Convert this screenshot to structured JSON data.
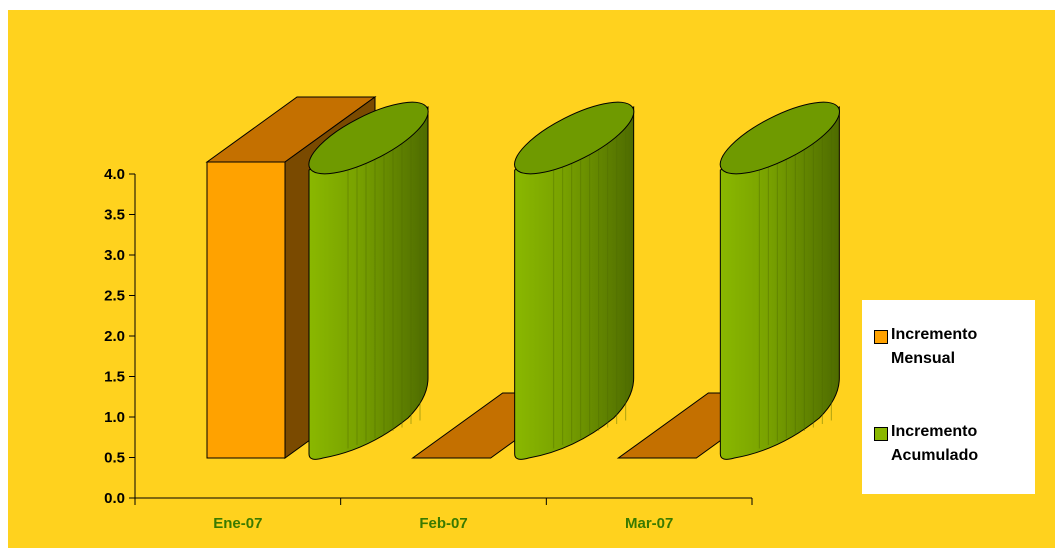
{
  "colors": {
    "background": "#ffd21e",
    "legend_background": "#ffffff",
    "bar_front": "#ffa200",
    "bar_top": "#c47000",
    "bar_side": "#7a4a00",
    "cyl_light": "#8ab800",
    "cyl_dark": "#4e6b00",
    "cyl_top": "#6f9a00",
    "category_label": "#3a7a00"
  },
  "chart_data": {
    "type": "bar",
    "style": "3d",
    "categories": [
      "Ene-07",
      "Feb-07",
      "Mar-07"
    ],
    "series": [
      {
        "name": "Incremento Mensual",
        "values": [
          4.0,
          0.0,
          0.0
        ],
        "shape": "box"
      },
      {
        "name": "Incremento Acumulado",
        "values": [
          4.0,
          4.0,
          4.0
        ],
        "shape": "cylinder"
      }
    ],
    "ylim": [
      0,
      4.0
    ],
    "yticks": [
      "0.0",
      "0.5",
      "1.0",
      "1.5",
      "2.0",
      "2.5",
      "3.0",
      "3.5",
      "4.0"
    ],
    "ytick_values": [
      0,
      0.5,
      1.0,
      1.5,
      2.0,
      2.5,
      3.0,
      3.5,
      4.0
    ],
    "grid": false,
    "legend_position": "right"
  }
}
